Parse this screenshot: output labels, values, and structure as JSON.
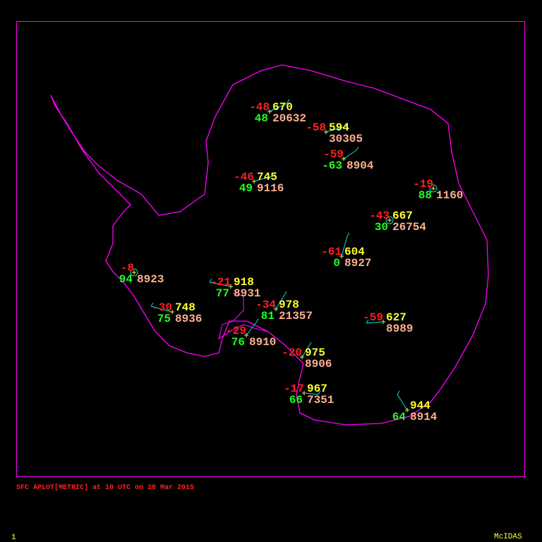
{
  "title": "SFC APLOT[METRIC] at 10 UTC on 26 Mar 2015",
  "frame_number": "1",
  "brand": "McIDAS",
  "colors": {
    "frame": "#ff00ff",
    "coast": "#ff00ff",
    "temperature": "#ff2020",
    "pressure": "#ffff30",
    "dewpoint": "#20ff20",
    "station_id": "#ffb090",
    "wind": "#00e0e0"
  },
  "stations": [
    {
      "temp": "-48",
      "pressure": "670",
      "dewpoint": "48",
      "id": "20632"
    },
    {
      "temp": "-58",
      "pressure": "594",
      "dewpoint": "",
      "id": "30305"
    },
    {
      "temp": "-59",
      "pressure": "",
      "dewpoint": "-63",
      "id": "8904"
    },
    {
      "temp": "-46",
      "pressure": "745",
      "dewpoint": "49",
      "id": "9116"
    },
    {
      "temp": "-19",
      "pressure": "",
      "dewpoint": "88",
      "id": "1160",
      "calm": true
    },
    {
      "temp": "-43",
      "pressure": "667",
      "dewpoint": "30",
      "id": "26754",
      "calm": true
    },
    {
      "temp": "-61",
      "pressure": "604",
      "dewpoint": "0",
      "id": "8927"
    },
    {
      "temp": "-8",
      "pressure": "",
      "dewpoint": "94",
      "id": "8923",
      "calm": true
    },
    {
      "temp": "-21",
      "pressure": "918",
      "dewpoint": "77",
      "id": "8931"
    },
    {
      "temp": "-30",
      "pressure": "748",
      "dewpoint": "75",
      "id": "8936"
    },
    {
      "temp": "-34",
      "pressure": "978",
      "dewpoint": "81",
      "id": "21357"
    },
    {
      "temp": "-29",
      "pressure": "",
      "dewpoint": "76",
      "id": "8910"
    },
    {
      "temp": "-59",
      "pressure": "627",
      "dewpoint": "",
      "id": "8989"
    },
    {
      "temp": "-20",
      "pressure": "975",
      "dewpoint": "",
      "id": "8906"
    },
    {
      "temp": "-17",
      "pressure": "967",
      "dewpoint": "66",
      "id": "7351"
    },
    {
      "temp": "",
      "pressure": "944",
      "dewpoint": "64",
      "id": "8914"
    }
  ]
}
